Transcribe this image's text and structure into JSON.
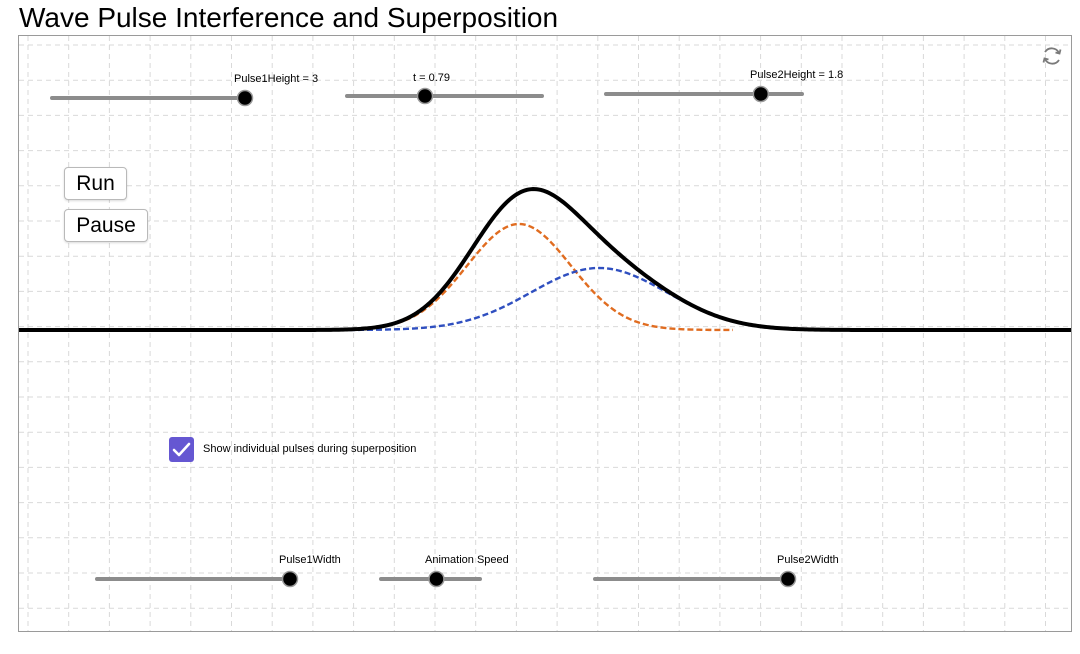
{
  "title": "Wave Pulse Interference and Superposition",
  "toolbar": {
    "reset_icon": "refresh-icon"
  },
  "sliders": {
    "pulse1_height": {
      "label": "Pulse1Height = 3",
      "value": 3,
      "fraction": 1.0
    },
    "time": {
      "label": "t = 0.79",
      "value": 0.79,
      "fraction": 0.4
    },
    "pulse2_height": {
      "label": "Pulse2Height = 1.8",
      "value": 1.8,
      "fraction": 0.79
    },
    "pulse1_width": {
      "label": "Pulse1Width",
      "fraction": 1.0
    },
    "animation_speed": {
      "label": "Animation Speed",
      "fraction": 0.56
    },
    "pulse2_width": {
      "label": "Pulse2Width",
      "fraction": 1.0
    }
  },
  "buttons": {
    "run": "Run",
    "pause": "Pause"
  },
  "checkbox": {
    "label": "Show individual pulses during superposition",
    "checked": true
  },
  "colors": {
    "superposition": "#000000",
    "pulse1": "#e06c20",
    "pulse2": "#2f4fc0",
    "checkbox": "#6557d2",
    "slider_track": "#8c8c8c",
    "grid": "#d9d9d9"
  }
}
